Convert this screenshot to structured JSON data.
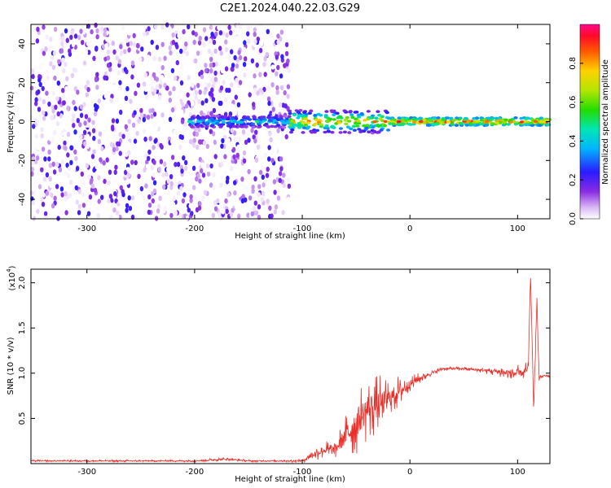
{
  "title": "C2E1.2024.040.22.03.G29",
  "chart_data": [
    {
      "type": "heatmap",
      "xlabel": "Height of straight line (km)",
      "ylabel": "Frequency (Hz)",
      "xlim": [
        -352,
        130
      ],
      "ylim": [
        -50,
        50
      ],
      "xticks": [
        -300,
        -200,
        -100,
        0,
        100
      ],
      "yticks": [
        -40,
        -20,
        0,
        20,
        40
      ],
      "colorbar": {
        "label": "Normalized spectral amplitude",
        "range": [
          0.0,
          1.0
        ],
        "ticks": [
          "0.0",
          "0.2",
          "0.4",
          "0.6",
          "0.8"
        ],
        "tick_values": [
          0.0,
          0.2,
          0.4,
          0.6,
          0.8
        ]
      },
      "regions": [
        {
          "x_from": -352,
          "x_to": -112,
          "freq_spread": [
            -50,
            50
          ],
          "amplitude": [
            0.0,
            0.25
          ]
        },
        {
          "x_from": -205,
          "x_to": -112,
          "freq_center": 0,
          "freq_halfwidth": 3,
          "amplitude": [
            0.1,
            0.5
          ]
        },
        {
          "x_from": -112,
          "x_to": -20,
          "freq_center": 0,
          "freq_halfwidth": 6,
          "amplitude": [
            0.1,
            0.9
          ]
        },
        {
          "x_from": -20,
          "x_to": 130,
          "freq_center": 0,
          "freq_halfwidth": 2,
          "amplitude": [
            0.3,
            1.0
          ]
        }
      ]
    },
    {
      "type": "line",
      "xlabel": "Height of straight line (km)",
      "ylabel": "SNR (10 * v/v)",
      "y_multiplier": "(x10",
      "y_multiplier_exp": "4",
      "y_multiplier_close": ")",
      "xlim": [
        -352,
        130
      ],
      "ylim": [
        0,
        2.15
      ],
      "xticks": [
        -300,
        -200,
        -100,
        0,
        100
      ],
      "yticks": [
        0.5,
        1.0,
        1.5,
        2.0
      ],
      "ytick_labels": [
        "0.5",
        "1.0",
        "1.5",
        "2.0"
      ],
      "color": "#e8302a",
      "series": [
        {
          "x": [
            -352,
            -300,
            -250,
            -200,
            -170,
            -150,
            -120,
            -100,
            -90,
            -80,
            -70,
            -60,
            -50,
            -40,
            -30,
            -20,
            -10,
            0,
            10,
            20,
            30,
            40,
            50,
            60,
            70,
            80,
            90,
            100,
            105,
            110,
            112,
            115,
            118,
            120,
            125,
            130
          ],
          "y": [
            0.03,
            0.03,
            0.03,
            0.03,
            0.05,
            0.03,
            0.03,
            0.03,
            0.1,
            0.15,
            0.15,
            0.3,
            0.45,
            0.6,
            0.65,
            0.72,
            0.8,
            0.88,
            0.95,
            1.0,
            1.05,
            1.05,
            1.05,
            1.04,
            1.03,
            1.02,
            1.0,
            1.0,
            1.0,
            1.05,
            2.1,
            0.6,
            1.8,
            0.95,
            0.97,
            0.97
          ],
          "noise": [
            0.01,
            0.01,
            0.01,
            0.01,
            0.02,
            0.01,
            0.01,
            0.02,
            0.06,
            0.08,
            0.1,
            0.2,
            0.3,
            0.3,
            0.28,
            0.2,
            0.15,
            0.08,
            0.05,
            0.03,
            0.02,
            0.02,
            0.02,
            0.02,
            0.03,
            0.05,
            0.08,
            0.08,
            0.06,
            0.1,
            0.0,
            0.05,
            0.1,
            0.04,
            0.02,
            0.02
          ]
        }
      ]
    }
  ]
}
